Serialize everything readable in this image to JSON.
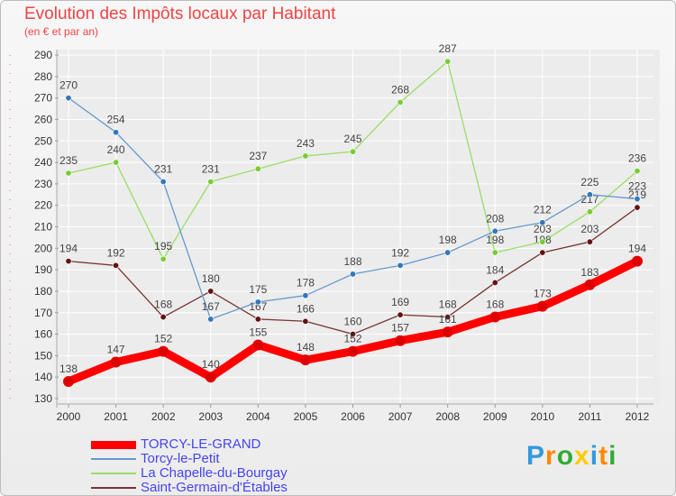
{
  "chart_data": {
    "type": "line",
    "title": "Evolution des Impôts locaux par Habitant",
    "subtitle": "(en € et par an)",
    "x": [
      "2000",
      "2001",
      "2002",
      "2003",
      "2004",
      "2005",
      "2006",
      "2007",
      "2008",
      "2009",
      "2010",
      "2011",
      "2012"
    ],
    "ylim": [
      130,
      290
    ],
    "yticks": [
      "130",
      "140",
      "150",
      "160",
      "170",
      "180",
      "190",
      "200",
      "210",
      "220",
      "230",
      "240",
      "250",
      "260",
      "270",
      "280",
      "290"
    ],
    "grid": true,
    "legend_position": "bottom-left",
    "series": [
      {
        "name": "TORCY-LE-GRAND",
        "color": "#ff0000",
        "marker": "#dd0000",
        "values": [
          138,
          147,
          152,
          140,
          155,
          148,
          152,
          157,
          161,
          168,
          173,
          183,
          194
        ],
        "labels": [
          "138",
          "147",
          "152",
          "140",
          "155",
          "148",
          "152",
          "157",
          "161",
          "168",
          "173",
          "183",
          "194"
        ]
      },
      {
        "name": "Torcy-le-Petit",
        "color": "#6699cc",
        "marker": "#3377bb",
        "values": [
          270,
          254,
          231,
          167,
          175,
          178,
          188,
          192,
          198,
          208,
          212,
          225,
          223
        ],
        "labels": [
          "270",
          "254",
          "231",
          "167",
          "175",
          "178",
          "188",
          "192",
          "198",
          "208",
          "212",
          "225",
          "223"
        ]
      },
      {
        "name": "La Chapelle-du-Bourgay",
        "color": "#99dd66",
        "marker": "#77cc33",
        "values": [
          235,
          240,
          195,
          231,
          237,
          243,
          245,
          268,
          287,
          198,
          203,
          217,
          236
        ],
        "labels": [
          "235",
          "240",
          "195",
          "231",
          "237",
          "243",
          "245",
          "268",
          "287",
          "198",
          "203",
          "217",
          "236"
        ]
      },
      {
        "name": "Saint-Germain-d'Étables",
        "color": "#773333",
        "marker": "#661111",
        "values": [
          194,
          192,
          168,
          180,
          167,
          166,
          160,
          169,
          168,
          184,
          198,
          203,
          219
        ],
        "labels": [
          "194",
          "192",
          "168",
          "180",
          "167",
          "166",
          "160",
          "169",
          "168",
          "184",
          "198",
          "203",
          "219"
        ]
      }
    ]
  },
  "brand": {
    "letters": [
      "P",
      "r",
      "o",
      "x",
      "i",
      "t",
      "i"
    ],
    "colors": [
      "#3399dd",
      "#ff8800",
      "#33aa33",
      "#ffcc00",
      "#3399dd",
      "#ff8800",
      "#33aa33"
    ]
  }
}
